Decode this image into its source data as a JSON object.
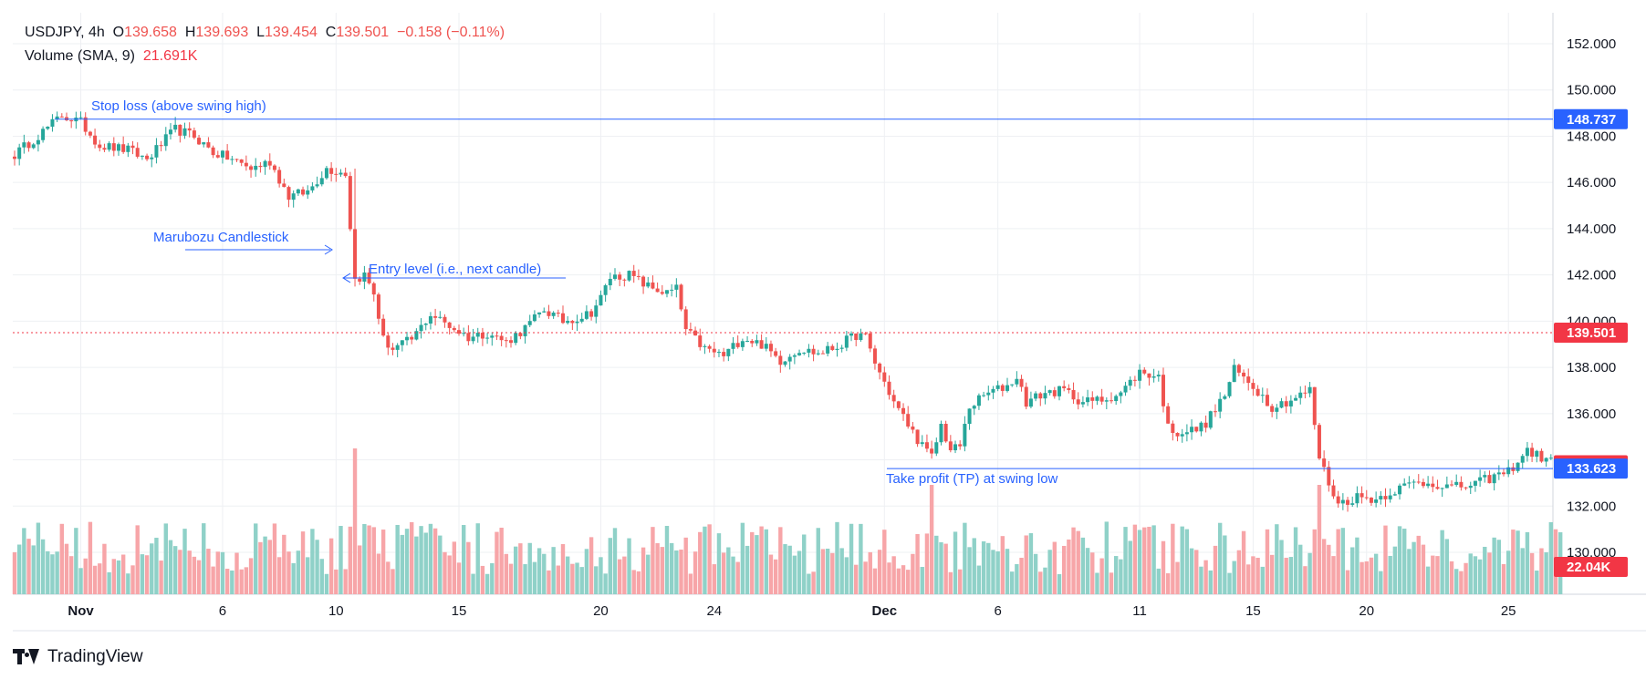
{
  "legend": {
    "symbol": "USDJPY, 4h",
    "o_label": "O",
    "o_value": "139.658",
    "h_label": "H",
    "h_value": "139.693",
    "l_label": "L",
    "l_value": "139.454",
    "c_label": "C",
    "c_value": "139.501",
    "change": "−0.158 (−0.11%)",
    "volume_label": "Volume (SMA, 9)",
    "volume_value": "21.691K"
  },
  "brand": {
    "name": "TradingView"
  },
  "colors": {
    "up": "#26a69a",
    "down": "#ef5350",
    "vol_up": "#8fd1c8",
    "vol_down": "#f7a5a8",
    "line": "#2962ff",
    "text_annotation": "#2962ff",
    "grid": "#eef0f3",
    "axis_text": "#131722"
  },
  "chart_data": {
    "type": "candlestick",
    "symbol": "USDJPY",
    "timeframe": "4h",
    "y_axis": {
      "ticks": [
        "152.000",
        "150.000",
        "148.000",
        "146.000",
        "144.000",
        "142.000",
        "140.000",
        "138.000",
        "136.000",
        "134.000",
        "132.000",
        "130.000"
      ],
      "range": [
        128.2,
        153.3
      ]
    },
    "x_axis": {
      "ticks": [
        {
          "label": "Nov",
          "bar": 14,
          "bold": true
        },
        {
          "label": "6",
          "bar": 44,
          "bold": false
        },
        {
          "label": "10",
          "bar": 68,
          "bold": false
        },
        {
          "label": "15",
          "bar": 94,
          "bold": false
        },
        {
          "label": "20",
          "bar": 124,
          "bold": false
        },
        {
          "label": "24",
          "bar": 148,
          "bold": false
        },
        {
          "label": "Dec",
          "bar": 184,
          "bold": true
        },
        {
          "label": "6",
          "bar": 208,
          "bold": false
        },
        {
          "label": "11",
          "bar": 238,
          "bold": false
        },
        {
          "label": "15",
          "bar": 262,
          "bold": false
        },
        {
          "label": "20",
          "bar": 286,
          "bold": false
        },
        {
          "label": "25",
          "bar": 316,
          "bold": false
        }
      ]
    },
    "price_keypoints": [
      [
        0,
        147.2
      ],
      [
        6,
        148.2
      ],
      [
        10,
        148.9
      ],
      [
        14,
        148.6
      ],
      [
        18,
        147.6
      ],
      [
        24,
        147.4
      ],
      [
        28,
        147.0
      ],
      [
        34,
        148.3
      ],
      [
        38,
        148.0
      ],
      [
        42,
        147.3
      ],
      [
        46,
        147.0
      ],
      [
        50,
        146.6
      ],
      [
        54,
        146.9
      ],
      [
        58,
        145.4
      ],
      [
        62,
        145.6
      ],
      [
        66,
        146.6
      ],
      [
        70,
        146.4
      ],
      [
        72,
        141.8
      ],
      [
        74,
        142.0
      ],
      [
        76,
        141.2
      ],
      [
        78,
        139.2
      ],
      [
        80,
        138.8
      ],
      [
        84,
        139.2
      ],
      [
        88,
        140.3
      ],
      [
        92,
        139.8
      ],
      [
        96,
        139.3
      ],
      [
        100,
        139.5
      ],
      [
        104,
        139.1
      ],
      [
        108,
        139.7
      ],
      [
        112,
        140.5
      ],
      [
        116,
        140.0
      ],
      [
        120,
        140.2
      ],
      [
        122,
        140.4
      ],
      [
        124,
        141.0
      ],
      [
        126,
        141.9
      ],
      [
        130,
        142.0
      ],
      [
        134,
        141.5
      ],
      [
        138,
        141.2
      ],
      [
        140,
        141.4
      ],
      [
        142,
        139.6
      ],
      [
        146,
        138.8
      ],
      [
        150,
        138.5
      ],
      [
        154,
        139.3
      ],
      [
        158,
        139.0
      ],
      [
        162,
        138.3
      ],
      [
        166,
        138.8
      ],
      [
        170,
        138.6
      ],
      [
        174,
        138.9
      ],
      [
        178,
        139.4
      ],
      [
        180,
        139.3
      ],
      [
        182,
        138.2
      ],
      [
        186,
        136.5
      ],
      [
        190,
        135.2
      ],
      [
        192,
        134.6
      ],
      [
        194,
        134.1
      ],
      [
        196,
        135.5
      ],
      [
        198,
        134.4
      ],
      [
        200,
        134.6
      ],
      [
        202,
        136.3
      ],
      [
        206,
        136.9
      ],
      [
        210,
        137.2
      ],
      [
        212,
        137.6
      ],
      [
        214,
        136.5
      ],
      [
        218,
        136.9
      ],
      [
        222,
        137.0
      ],
      [
        226,
        136.5
      ],
      [
        230,
        136.6
      ],
      [
        234,
        136.9
      ],
      [
        238,
        137.8
      ],
      [
        242,
        137.6
      ],
      [
        244,
        135.4
      ],
      [
        246,
        135.2
      ],
      [
        250,
        135.3
      ],
      [
        252,
        135.6
      ],
      [
        256,
        136.8
      ],
      [
        258,
        137.9
      ],
      [
        262,
        137.2
      ],
      [
        266,
        136.3
      ],
      [
        270,
        136.6
      ],
      [
        274,
        137.0
      ],
      [
        276,
        134.1
      ],
      [
        278,
        133.0
      ],
      [
        280,
        132.1
      ],
      [
        284,
        132.4
      ],
      [
        288,
        132.3
      ],
      [
        292,
        132.7
      ],
      [
        296,
        133.0
      ],
      [
        300,
        133.0
      ],
      [
        304,
        132.8
      ],
      [
        308,
        132.9
      ],
      [
        312,
        133.2
      ],
      [
        316,
        133.5
      ],
      [
        320,
        134.4
      ],
      [
        324,
        134.0
      ],
      [
        326,
        133.8
      ],
      [
        327,
        133.8
      ]
    ],
    "volume_sma": "21.691K",
    "annotations": [
      {
        "id": "stop-loss",
        "text": "Stop loss (above swing high)",
        "price": 148.737
      },
      {
        "id": "marubozu",
        "text": "Marubozu Candlestick"
      },
      {
        "id": "entry",
        "text": "Entry level (i.e., next candle)"
      },
      {
        "id": "take-profit",
        "text": "Take profit (TP) at swing low",
        "price": 133.623
      }
    ],
    "price_labels": [
      {
        "id": "stop-loss-label",
        "text": "148.737",
        "price": 148.737,
        "color": "#2962ff"
      },
      {
        "id": "last-price-label",
        "text": "139.501",
        "price": 139.501,
        "color": "#f23645"
      },
      {
        "id": "current-price-label",
        "text": "133.763",
        "price": 133.763,
        "color": "#f23645"
      },
      {
        "id": "take-profit-label",
        "text": "133.623",
        "price": 133.623,
        "color": "#2962ff"
      },
      {
        "id": "volume-label",
        "text": "22.04K",
        "price": null,
        "color": "#f23645"
      }
    ]
  }
}
